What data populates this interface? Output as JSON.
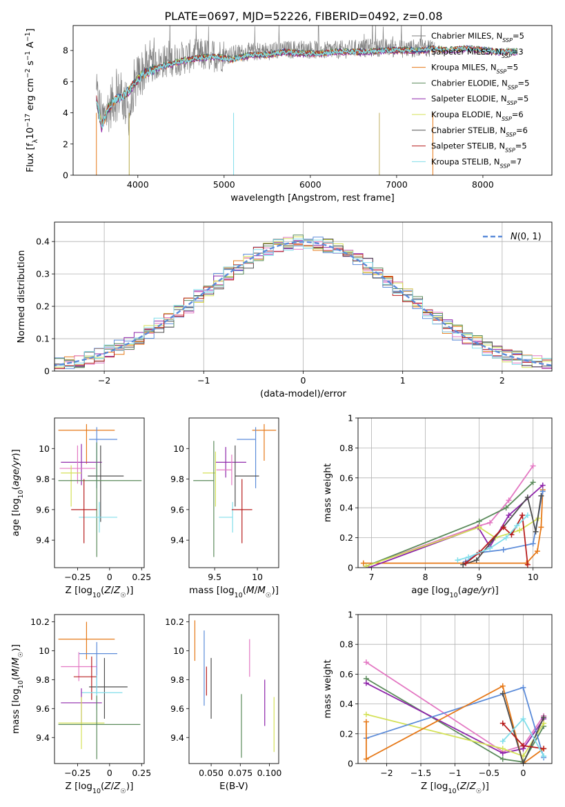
{
  "title": "PLATE=0697, MJD=52226, FIBERID=0492, z=0.08",
  "colors": {
    "chabrier_miles": "#7f7f7f",
    "salpeter_miles": "#1f3a93",
    "kroupa_miles": "#e67817",
    "chabrier_elodie": "#5a8a5a",
    "salpeter_elodie": "#8e24aa",
    "kroupa_elodie": "#d4e157",
    "chabrier_stelib": "#4d4d4d",
    "salpeter_stelib": "#b71c1c",
    "kroupa_stelib": "#80deea",
    "pink": "#e377c2",
    "blue": "#5b8bd9",
    "normal_curve": "#5b8bd9"
  },
  "chart_data": [
    {
      "id": "spectrum",
      "type": "line",
      "xlabel": "wavelength [Angstrom, rest frame]",
      "ylabel": "Flux [f_λ 10^-17 erg cm^-2 s^-1 A^-1]",
      "xlim": [
        3250,
        8800
      ],
      "ylim": [
        0,
        9.6
      ],
      "xticks": [
        4000,
        5000,
        6000,
        7000,
        8000
      ],
      "yticks": [
        0,
        2,
        4,
        6,
        8
      ],
      "legend_position": "right",
      "legend": [
        {
          "base": "Chabrier MILES, N",
          "sub": "SSP",
          "tail": "=5",
          "color": "#7f7f7f"
        },
        {
          "base": "Salpeter MILES, N",
          "sub": "SSP",
          "tail": "=3",
          "color": "#1f3a93"
        },
        {
          "base": "Kroupa MILES, N",
          "sub": "SSP",
          "tail": "=5",
          "color": "#e67817"
        },
        {
          "base": "Chabrier ELODIE, N",
          "sub": "SSP",
          "tail": "=5",
          "color": "#5a8a5a"
        },
        {
          "base": "Salpeter ELODIE, N",
          "sub": "SSP",
          "tail": "=5",
          "color": "#8e24aa"
        },
        {
          "base": "Kroupa ELODIE, N",
          "sub": "SSP",
          "tail": "=6",
          "color": "#d4e157"
        },
        {
          "base": "Chabrier STELIB, N",
          "sub": "SSP",
          "tail": "=6",
          "color": "#4d4d4d"
        },
        {
          "base": "Salpeter STELIB, N",
          "sub": "SSP",
          "tail": "=5",
          "color": "#b71c1c"
        },
        {
          "base": "Kroupa STELIB, N",
          "sub": "SSP",
          "tail": "=7",
          "color": "#80deea"
        }
      ],
      "continuum": {
        "x": [
          3520,
          3600,
          3700,
          3800,
          3900,
          4000,
          4100,
          4300,
          4500,
          4700,
          5000,
          5300,
          5600,
          5900,
          6200,
          6500,
          6800,
          7100,
          7400
        ],
        "y": [
          5.0,
          3.6,
          4.7,
          5.3,
          4.0,
          6.3,
          6.9,
          7.3,
          7.5,
          7.7,
          7.7,
          7.9,
          8.0,
          8.1,
          8.0,
          8.1,
          8.2,
          8.1,
          8.2
        ]
      },
      "model": {
        "x": [
          3520,
          3580,
          3650,
          3750,
          3850,
          3950,
          4050,
          4150,
          4300,
          4500,
          4700,
          4900,
          5100,
          5300,
          5500,
          5700,
          5900,
          6100,
          6300,
          6500,
          6700,
          6900,
          7100,
          7300,
          7420,
          7600,
          7800,
          8000,
          8200,
          8400
        ],
        "y": [
          4.8,
          3.1,
          4.2,
          4.9,
          5.1,
          5.8,
          6.4,
          6.7,
          7.0,
          7.3,
          7.5,
          7.6,
          7.4,
          7.7,
          7.7,
          7.9,
          7.8,
          7.8,
          7.9,
          7.9,
          7.9,
          8.0,
          8.0,
          8.0,
          8.1,
          8.0,
          8.1,
          8.0,
          7.9,
          7.9
        ]
      },
      "dropouts_x": [
        3520,
        3900,
        5110,
        6800,
        7420
      ]
    },
    {
      "id": "residuals",
      "type": "histogram",
      "xlabel": "(data-model)/error",
      "ylabel": "Normed distribution",
      "xlim": [
        -2.5,
        2.5
      ],
      "ylim": [
        0,
        0.46
      ],
      "xticks": [
        -2,
        -1,
        0,
        1,
        2
      ],
      "yticks": [
        0,
        0.1,
        0.2,
        0.3,
        0.4
      ],
      "grid": true,
      "legend_position": "upper right",
      "curve_label": "N(0, 1)",
      "bin_width": 0.1
    },
    {
      "id": "age_vs_Z",
      "type": "errorbar",
      "xlabel": "Z [log10(Z/Z☉)]",
      "ylabel": "age [log10(age/yr)]",
      "xlim": [
        -0.43,
        0.27
      ],
      "ylim": [
        9.22,
        10.2
      ],
      "xticks": [
        -0.25,
        0.0,
        0.25
      ],
      "yticks": [
        9.4,
        9.6,
        9.8,
        10.0
      ],
      "points": [
        {
          "x": -0.18,
          "xerr": [
            0.22,
            0.22
          ],
          "y": 10.12,
          "yerr": [
            0.22,
            0.04
          ],
          "c": "#e67817"
        },
        {
          "x": -0.1,
          "xerr": [
            0.06,
            0.16
          ],
          "y": 10.06,
          "yerr": [
            0.32,
            0.08
          ],
          "c": "#5b8bd9"
        },
        {
          "x": -0.22,
          "xerr": [
            0.16,
            0.16
          ],
          "y": 9.91,
          "yerr": [
            0.15,
            0.12
          ],
          "c": "#8e24aa"
        },
        {
          "x": -0.25,
          "xerr": [
            0.14,
            0.14
          ],
          "y": 9.87,
          "yerr": [
            0.1,
            0.15
          ],
          "c": "#e377c2"
        },
        {
          "x": -0.3,
          "xerr": [
            0.08,
            0.08
          ],
          "y": 9.84,
          "yerr": [
            0.22,
            0.05
          ],
          "c": "#d4e157"
        },
        {
          "x": -0.07,
          "xerr": [
            0.1,
            0.18
          ],
          "y": 9.82,
          "yerr": [
            0.3,
            0.2
          ],
          "c": "#4d4d4d"
        },
        {
          "x": -0.1,
          "xerr": [
            0.3,
            0.35
          ],
          "y": 9.79,
          "yerr": [
            0.5,
            0.25
          ],
          "c": "#5a8a5a"
        },
        {
          "x": -0.08,
          "xerr": [
            0.16,
            0.14
          ],
          "y": 9.55,
          "yerr": [
            0.1,
            0.1
          ],
          "c": "#80deea"
        },
        {
          "x": -0.2,
          "xerr": [
            0.1,
            0.1
          ],
          "y": 9.6,
          "yerr": [
            0.22,
            0.2
          ],
          "c": "#b71c1c"
        }
      ]
    },
    {
      "id": "age_vs_mass",
      "type": "errorbar",
      "xlabel": "mass [log10(M/M☉)]",
      "ylabel": "",
      "xlim": [
        9.2,
        10.25
      ],
      "ylim": [
        9.22,
        10.2
      ],
      "xticks": [
        9.5,
        10.0
      ],
      "yticks": [
        9.4,
        9.6,
        9.8,
        10.0
      ],
      "points": [
        {
          "x": 10.08,
          "xerr": [
            0.14,
            0.14
          ],
          "y": 10.12,
          "yerr": [
            0.2,
            0.04
          ],
          "c": "#e67817"
        },
        {
          "x": 9.98,
          "xerr": [
            0.22,
            0.0
          ],
          "y": 10.06,
          "yerr": [
            0.32,
            0.08
          ],
          "c": "#5b8bd9"
        },
        {
          "x": 9.63,
          "xerr": [
            0.12,
            0.24
          ],
          "y": 9.91,
          "yerr": [
            0.1,
            0.1
          ],
          "c": "#8e24aa"
        },
        {
          "x": 9.7,
          "xerr": [
            0.18,
            0.0
          ],
          "y": 9.86,
          "yerr": [
            0.1,
            0.1
          ],
          "c": "#e377c2"
        },
        {
          "x": 9.51,
          "xerr": [
            0.15,
            0.0
          ],
          "y": 9.84,
          "yerr": [
            0.22,
            0.14
          ],
          "c": "#d4e157"
        },
        {
          "x": 9.74,
          "xerr": [
            0.0,
            0.28
          ],
          "y": 9.82,
          "yerr": [
            0.2,
            0.2
          ],
          "c": "#4d4d4d"
        },
        {
          "x": 9.49,
          "xerr": [
            0.24,
            0.0
          ],
          "y": 9.79,
          "yerr": [
            0.5,
            0.26
          ],
          "c": "#5a8a5a"
        },
        {
          "x": 9.71,
          "xerr": [
            0.16,
            0.0
          ],
          "y": 9.55,
          "yerr": [
            0.1,
            0.1
          ],
          "c": "#80deea"
        },
        {
          "x": 9.82,
          "xerr": [
            0.12,
            0.12
          ],
          "y": 9.6,
          "yerr": [
            0.22,
            0.2
          ],
          "c": "#b71c1c"
        }
      ]
    },
    {
      "id": "weight_vs_age",
      "type": "line",
      "xlabel": "age [log10(age/yr)]",
      "ylabel": "mass weight",
      "xlim": [
        6.75,
        10.35
      ],
      "ylim": [
        0,
        1.0
      ],
      "xticks": [
        7,
        8,
        9,
        10
      ],
      "yticks": [
        0.0,
        0.2,
        0.4,
        0.6,
        0.8,
        1.0
      ],
      "grid": true,
      "series": [
        {
          "c": "#e67817",
          "x": [
            6.85,
            9.88,
            10.08,
            10.15,
            10.18
          ],
          "y": [
            0.03,
            0.03,
            0.11,
            0.27,
            0.52
          ]
        },
        {
          "c": "#5b8bd9",
          "x": [
            8.75,
            9.0,
            9.45,
            10.0,
            10.18
          ],
          "y": [
            0.04,
            0.1,
            0.12,
            0.16,
            0.51
          ]
        },
        {
          "c": "#e377c2",
          "x": [
            6.9,
            9.0,
            9.2,
            9.55,
            10.0
          ],
          "y": [
            0.01,
            0.28,
            0.3,
            0.45,
            0.68
          ]
        },
        {
          "c": "#5a8a5a",
          "x": [
            6.9,
            9.0,
            9.5,
            10.0
          ],
          "y": [
            0.01,
            0.31,
            0.4,
            0.57
          ]
        },
        {
          "c": "#8e24aa",
          "x": [
            6.95,
            8.98,
            9.2,
            9.55,
            10.18
          ],
          "y": [
            0.0,
            0.27,
            0.14,
            0.35,
            0.55
          ]
        },
        {
          "c": "#d4e157",
          "x": [
            6.9,
            9.0,
            9.3,
            9.75,
            10.1
          ],
          "y": [
            0.01,
            0.27,
            0.2,
            0.25,
            0.33
          ]
        },
        {
          "c": "#4d4d4d",
          "x": [
            8.7,
            8.95,
            9.9,
            10.05,
            10.15
          ],
          "y": [
            0.02,
            0.05,
            0.47,
            0.24,
            0.48
          ]
        },
        {
          "c": "#b71c1c",
          "x": [
            8.75,
            9.0,
            9.45,
            9.6,
            9.8,
            9.9
          ],
          "y": [
            0.03,
            0.1,
            0.27,
            0.22,
            0.35,
            0.02
          ]
        },
        {
          "c": "#80deea",
          "x": [
            8.6,
            8.8,
            9.2,
            9.5,
            9.7,
            9.9
          ],
          "y": [
            0.05,
            0.07,
            0.13,
            0.2,
            0.28,
            0.35
          ]
        }
      ]
    },
    {
      "id": "mass_vs_Z",
      "type": "errorbar",
      "xlabel": "Z [log10(Z/Z☉)]",
      "ylabel": "mass [log10(M/M☉)]",
      "xlim": [
        -0.43,
        0.27
      ],
      "ylim": [
        9.22,
        10.25
      ],
      "xticks": [
        -0.25,
        0.0,
        0.25
      ],
      "yticks": [
        9.4,
        9.6,
        9.8,
        10.0,
        10.2
      ],
      "points": [
        {
          "x": -0.18,
          "xerr": [
            0.22,
            0.22
          ],
          "y": 10.08,
          "yerr": [
            0.14,
            0.12
          ],
          "c": "#e67817"
        },
        {
          "x": -0.1,
          "xerr": [
            0.14,
            0.16
          ],
          "y": 9.98,
          "yerr": [
            0.28,
            0.08
          ],
          "c": "#5b8bd9"
        },
        {
          "x": -0.24,
          "xerr": [
            0.14,
            0.14
          ],
          "y": 9.89,
          "yerr": [
            0.1,
            0.1
          ],
          "c": "#e377c2"
        },
        {
          "x": -0.14,
          "xerr": [
            0.14,
            0.04
          ],
          "y": 9.82,
          "yerr": [
            0.16,
            0.14
          ],
          "c": "#b71c1c"
        },
        {
          "x": -0.04,
          "xerr": [
            0.12,
            0.18
          ],
          "y": 9.75,
          "yerr": [
            0.22,
            0.2
          ],
          "c": "#4d4d4d"
        },
        {
          "x": -0.1,
          "xerr": [
            0.12,
            0.2
          ],
          "y": 9.71,
          "yerr": [
            0.12,
            0.12
          ],
          "c": "#80deea"
        },
        {
          "x": -0.22,
          "xerr": [
            0.16,
            0.16
          ],
          "y": 9.64,
          "yerr": [
            0.14,
            0.1
          ],
          "c": "#8e24aa"
        },
        {
          "x": -0.22,
          "xerr": [
            0.18,
            0.18
          ],
          "y": 9.5,
          "yerr": [
            0.18,
            0.18
          ],
          "c": "#d4e157"
        },
        {
          "x": -0.1,
          "xerr": [
            0.3,
            0.34
          ],
          "y": 9.49,
          "yerr": [
            0.24,
            0.2
          ],
          "c": "#5a8a5a"
        }
      ]
    },
    {
      "id": "mass_vs_ebv",
      "type": "errorbar",
      "xlabel": "E(B-V)",
      "ylabel": "",
      "xlim": [
        0.031,
        0.108
      ],
      "ylim": [
        9.22,
        10.25
      ],
      "xticks": [
        0.05,
        0.075,
        0.1
      ],
      "xticklabels": [
        "0.050",
        "0.075",
        "0.100"
      ],
      "yticks": [
        9.4,
        9.6,
        9.8,
        10.0,
        10.2
      ],
      "points": [
        {
          "x": 0.036,
          "y": 10.07,
          "yerr": [
            0.14,
            0.14
          ],
          "c": "#e67817"
        },
        {
          "x": 0.044,
          "y": 9.88,
          "yerr": [
            0.26,
            0.26
          ],
          "c": "#5b8bd9"
        },
        {
          "x": 0.046,
          "y": 9.79,
          "yerr": [
            0.1,
            0.1
          ],
          "c": "#b71c1c"
        },
        {
          "x": 0.05,
          "y": 9.74,
          "yerr": [
            0.21,
            0.21
          ],
          "c": "#4d4d4d"
        },
        {
          "x": 0.076,
          "y": 9.48,
          "yerr": [
            0.22,
            0.22
          ],
          "c": "#5a8a5a"
        },
        {
          "x": 0.083,
          "y": 9.95,
          "yerr": [
            0.13,
            0.13
          ],
          "c": "#e377c2"
        },
        {
          "x": 0.096,
          "y": 9.64,
          "yerr": [
            0.16,
            0.16
          ],
          "c": "#8e24aa"
        },
        {
          "x": 0.104,
          "y": 9.49,
          "yerr": [
            0.19,
            0.19
          ],
          "c": "#d4e157"
        }
      ]
    },
    {
      "id": "weight_vs_Z",
      "type": "line",
      "xlabel": "Z [log10(Z/Z☉)]",
      "ylabel": "mass weight",
      "xlim": [
        -2.42,
        0.42
      ],
      "ylim": [
        0,
        1.0
      ],
      "xticks": [
        -2.0,
        -1.5,
        -1.0,
        -0.5,
        0.0
      ],
      "yticks": [
        0.0,
        0.2,
        0.4,
        0.6,
        0.8,
        1.0
      ],
      "grid": true,
      "series": [
        {
          "c": "#e377c2",
          "x": [
            -2.3,
            -0.3,
            0.0,
            0.3
          ],
          "y": [
            0.68,
            0.08,
            0.12,
            0.32
          ]
        },
        {
          "c": "#5a8a5a",
          "x": [
            -2.3,
            -0.3,
            0.0,
            0.3
          ],
          "y": [
            0.57,
            0.03,
            0.01,
            0.25
          ]
        },
        {
          "c": "#8e24aa",
          "x": [
            -2.3,
            -0.3,
            0.0,
            0.3
          ],
          "y": [
            0.54,
            0.07,
            0.1,
            0.3
          ]
        },
        {
          "c": "#d4e157",
          "x": [
            -2.3,
            -0.3,
            0.0,
            0.3
          ],
          "y": [
            0.33,
            0.1,
            0.05,
            0.27
          ]
        },
        {
          "c": "#5b8bd9",
          "x": [
            -2.3,
            0.0,
            0.3
          ],
          "y": [
            0.17,
            0.51,
            0.04
          ]
        },
        {
          "c": "#e67817",
          "x": [
            -2.3,
            -2.3,
            -0.3,
            0.0,
            0.3
          ],
          "y": [
            0.28,
            0.03,
            0.52,
            0.0,
            0.1
          ]
        },
        {
          "c": "#4d4d4d",
          "x": [
            -0.3,
            0.0,
            0.3
          ],
          "y": [
            0.47,
            0.0,
            0.31
          ]
        },
        {
          "c": "#b71c1c",
          "x": [
            -0.3,
            0.0,
            0.3
          ],
          "y": [
            0.27,
            0.12,
            0.1
          ]
        },
        {
          "c": "#80deea",
          "x": [
            -0.3,
            0.0,
            0.3
          ],
          "y": [
            0.15,
            0.3,
            0.05
          ]
        }
      ]
    }
  ]
}
